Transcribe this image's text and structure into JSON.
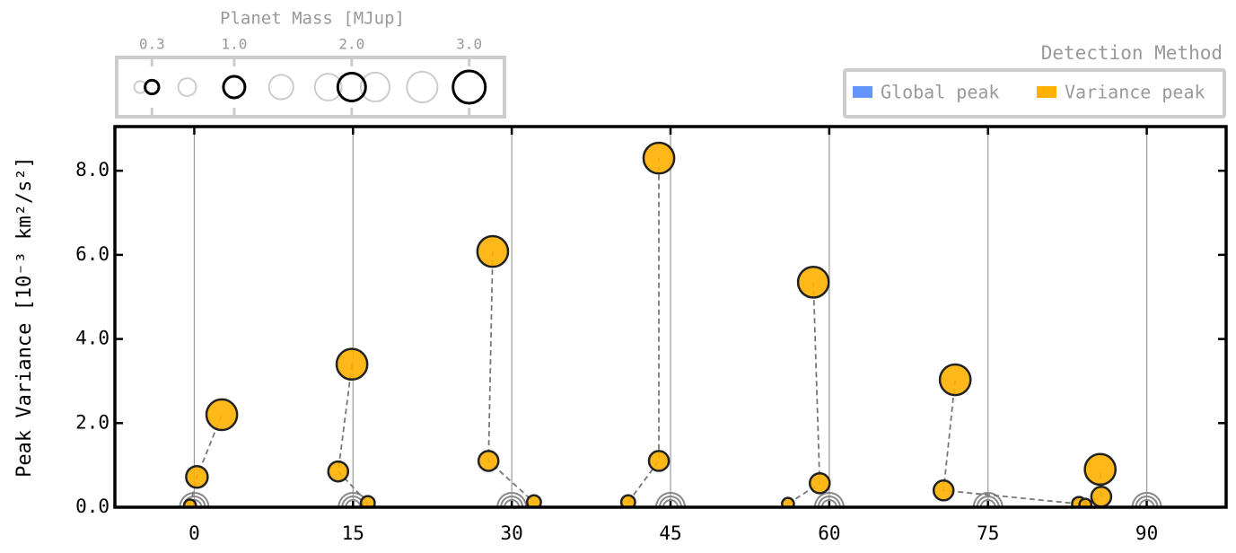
{
  "chart_data": {
    "type": "scatter",
    "y_label": "Peak Variance [10⁻³ km²/s²]",
    "xlim": [
      -7.5,
      97.5
    ],
    "ylim": [
      0,
      9.05
    ],
    "xticks": [
      0,
      15,
      30,
      45,
      60,
      75,
      90
    ],
    "yticks": [
      {
        "value": 0,
        "label": "0.0"
      },
      {
        "value": 2,
        "label": "2.0"
      },
      {
        "value": 4,
        "label": "4.0"
      },
      {
        "value": 6,
        "label": "6.0"
      },
      {
        "value": 8,
        "label": "8.0"
      }
    ],
    "grid": true,
    "marker_color": "#ffb000",
    "groups": [
      {
        "x": [
          -0.4,
          0.25,
          2.6
        ],
        "y": [
          0.04,
          0.72,
          2.2
        ],
        "mass": [
          0.2,
          1.0,
          2.6
        ]
      },
      {
        "x": [
          14.9,
          13.6,
          16.4
        ],
        "y": [
          3.4,
          0.85,
          0.1
        ],
        "mass": [
          2.6,
          0.8,
          0.3
        ]
      },
      {
        "x": [
          28.2,
          27.8,
          32.1
        ],
        "y": [
          6.08,
          1.1,
          0.12
        ],
        "mass": [
          2.6,
          0.8,
          0.3
        ]
      },
      {
        "x": [
          41.0,
          43.9,
          43.9
        ],
        "y": [
          0.12,
          1.1,
          8.3
        ],
        "mass": [
          0.3,
          0.8,
          2.6
        ]
      },
      {
        "x": [
          58.5,
          59.1,
          56.1
        ],
        "y": [
          5.35,
          0.57,
          0.08
        ],
        "mass": [
          2.6,
          0.8,
          0.2
        ]
      },
      {
        "x": [
          71.9,
          70.8,
          83.6
        ],
        "y": [
          3.03,
          0.4,
          0.08
        ],
        "mass": [
          2.6,
          0.8,
          0.3
        ]
      },
      {
        "x": [
          84.2,
          85.7,
          85.6
        ],
        "y": [
          0.06,
          0.25,
          0.9
        ],
        "mass": [
          0.2,
          0.8,
          2.6
        ]
      }
    ],
    "size_legend": {
      "title": "Planet Mass [MJup]",
      "xlim": [
        0,
        3.3
      ],
      "ticks": [
        0.3,
        {
          "value": 1,
          "label": "1.0"
        },
        {
          "value": 2,
          "label": "2.0"
        },
        {
          "value": 3,
          "label": "3.0"
        }
      ],
      "ghost_masses": [
        0.2,
        0.6,
        1.4,
        1.8,
        2.2,
        2.6
      ]
    },
    "legend": {
      "title": "Detection Method",
      "entries": [
        {
          "name": "Global peak",
          "color": "#6495ff"
        },
        {
          "name": "Variance peak",
          "color": "#ffb000"
        }
      ]
    }
  }
}
